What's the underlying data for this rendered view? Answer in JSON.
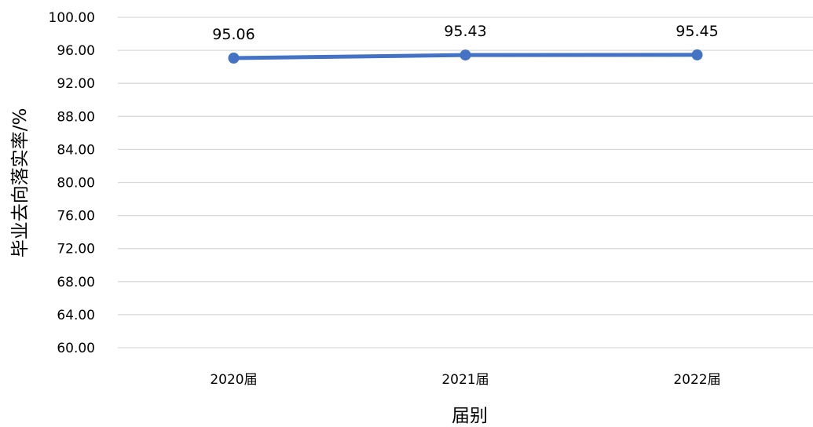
{
  "chart_data": {
    "type": "line",
    "title": "",
    "xlabel": "届别",
    "ylabel": "毕业去向落实率/%",
    "categories": [
      "2020届",
      "2021届",
      "2022届"
    ],
    "series": [
      {
        "values": [
          95.06,
          95.43,
          95.45
        ],
        "data_labels": [
          "95.06",
          "95.43",
          "95.45"
        ]
      }
    ],
    "ylim": [
      60,
      100
    ],
    "yticks": [
      "60.00",
      "64.00",
      "68.00",
      "72.00",
      "76.00",
      "80.00",
      "84.00",
      "88.00",
      "92.00",
      "96.00",
      "100.00"
    ],
    "grid": true,
    "legend": "none",
    "colors": {
      "line": "#4472c4",
      "grid": "#d9d9d9",
      "text": "#000000"
    }
  }
}
